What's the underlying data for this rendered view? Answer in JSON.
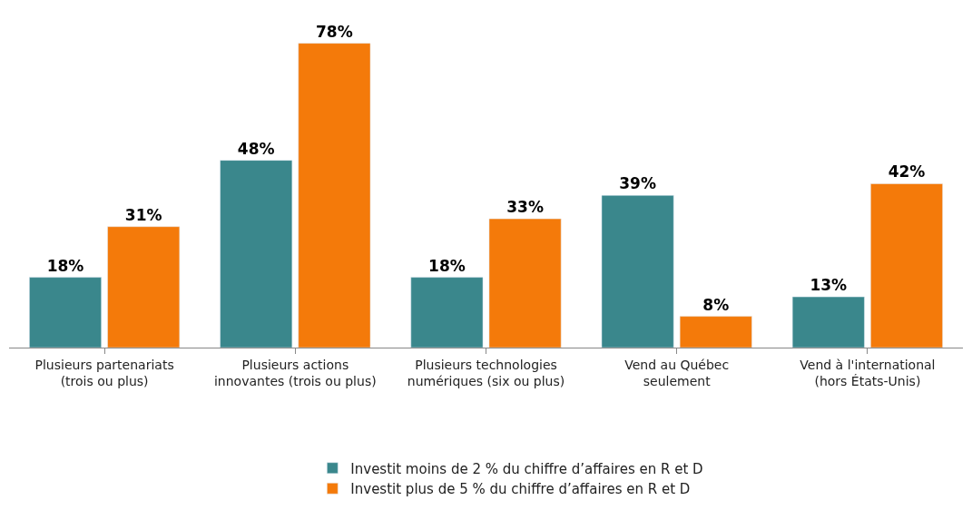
{
  "chart_data": {
    "type": "bar",
    "categories": [
      "Plusieurs partenariats\n(trois ou plus)",
      "Plusieurs actions\ninnovantes (trois ou plus)",
      "Plusieurs technologies\nnumériques (six ou plus)",
      "Vend au Québec\nseulement",
      "Vend à l'international\n(hors États-Unis)"
    ],
    "series": [
      {
        "name": "Investit moins de 2 % du chiffre d’affaires en R et D",
        "color": "#3a878c",
        "values": [
          18,
          48,
          18,
          39,
          13
        ],
        "value_labels": [
          "18%",
          "48%",
          "18%",
          "39%",
          "13%"
        ]
      },
      {
        "name": "Investit plus de 5 % du chiffre d’affaires en R et D",
        "color": "#f47a0a",
        "values": [
          31,
          78,
          33,
          8,
          42
        ],
        "value_labels": [
          "31%",
          "78%",
          "33%",
          "8%",
          "42%"
        ]
      }
    ],
    "legend": "bottom"
  }
}
